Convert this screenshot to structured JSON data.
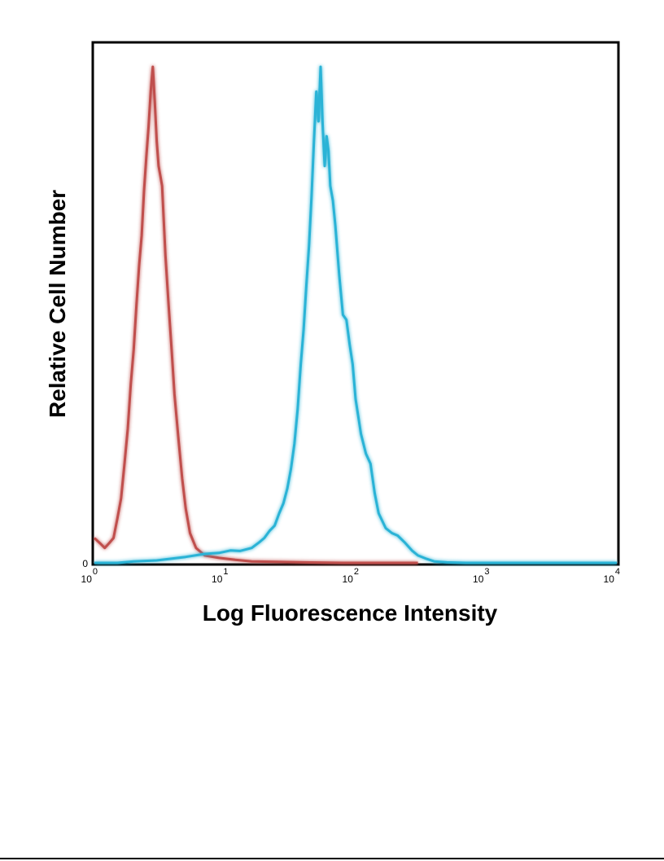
{
  "chart_data": {
    "type": "line",
    "title": "",
    "xlabel": "Log Fluorescence Intensity",
    "ylabel": "Relative Cell Number",
    "xscale": "log",
    "xlim": [
      1,
      10000
    ],
    "ylim": [
      0,
      100
    ],
    "grid": false,
    "legend": "none",
    "x_ticks": [
      {
        "base": "10",
        "exp": "0",
        "value": 1
      },
      {
        "base": "10",
        "exp": "1",
        "value": 10
      },
      {
        "base": "10",
        "exp": "2",
        "value": 100
      },
      {
        "base": "10",
        "exp": "3",
        "value": 1000
      },
      {
        "base": "10",
        "exp": "4",
        "value": 10000
      }
    ],
    "y_ticks": [
      {
        "label": "0",
        "value": 0
      }
    ],
    "series": [
      {
        "color": "#c0504d",
        "points": [
          [
            1.0,
            5
          ],
          [
            1.1,
            4
          ],
          [
            1.2,
            3
          ],
          [
            1.3,
            4
          ],
          [
            1.4,
            5
          ],
          [
            1.5,
            9
          ],
          [
            1.6,
            13
          ],
          [
            1.7,
            20
          ],
          [
            1.8,
            27
          ],
          [
            1.9,
            36
          ],
          [
            2.0,
            43
          ],
          [
            2.1,
            52
          ],
          [
            2.2,
            60
          ],
          [
            2.3,
            66
          ],
          [
            2.4,
            75
          ],
          [
            2.5,
            82
          ],
          [
            2.6,
            88
          ],
          [
            2.7,
            95
          ],
          [
            2.8,
            100
          ],
          [
            2.9,
            93
          ],
          [
            3.0,
            85
          ],
          [
            3.1,
            80
          ],
          [
            3.2,
            78
          ],
          [
            3.3,
            76
          ],
          [
            3.5,
            62
          ],
          [
            3.7,
            52
          ],
          [
            3.9,
            43
          ],
          [
            4.1,
            34
          ],
          [
            4.4,
            25
          ],
          [
            4.7,
            17
          ],
          [
            5.0,
            11
          ],
          [
            5.4,
            6
          ],
          [
            6.0,
            3
          ],
          [
            7.0,
            1.5
          ],
          [
            9.0,
            1
          ],
          [
            12.0,
            0.6
          ],
          [
            16.0,
            0.3
          ],
          [
            25.0,
            0.2
          ],
          [
            40.0,
            0.1
          ],
          [
            80.0,
            0
          ],
          [
            300.0,
            0
          ]
        ]
      },
      {
        "color": "#2bb3d6",
        "points": [
          [
            1.0,
            0
          ],
          [
            1.5,
            0
          ],
          [
            2.0,
            0.3
          ],
          [
            3.0,
            0.5
          ],
          [
            5.0,
            1.2
          ],
          [
            7.0,
            1.8
          ],
          [
            9.0,
            2
          ],
          [
            11.0,
            2.5
          ],
          [
            13.0,
            2.4
          ],
          [
            16.0,
            3
          ],
          [
            18.0,
            4
          ],
          [
            20.0,
            5
          ],
          [
            22.0,
            6.5
          ],
          [
            24.0,
            7.5
          ],
          [
            26.0,
            10
          ],
          [
            28.0,
            12
          ],
          [
            30.0,
            15
          ],
          [
            32.0,
            19
          ],
          [
            34.0,
            24
          ],
          [
            36.0,
            31
          ],
          [
            38.0,
            40
          ],
          [
            40.0,
            47
          ],
          [
            42.0,
            56
          ],
          [
            44.0,
            64
          ],
          [
            46.0,
            74
          ],
          [
            48.0,
            85
          ],
          [
            50.0,
            95
          ],
          [
            52.0,
            89
          ],
          [
            54.0,
            100
          ],
          [
            56.0,
            88
          ],
          [
            58.0,
            80
          ],
          [
            60.0,
            86
          ],
          [
            62.0,
            83
          ],
          [
            64.0,
            76
          ],
          [
            67.0,
            73
          ],
          [
            70.0,
            68
          ],
          [
            75.0,
            58
          ],
          [
            80.0,
            50
          ],
          [
            85.0,
            49
          ],
          [
            90.0,
            44
          ],
          [
            95.0,
            40
          ],
          [
            100.0,
            33
          ],
          [
            110.0,
            26
          ],
          [
            120.0,
            22
          ],
          [
            130.0,
            20
          ],
          [
            140.0,
            14
          ],
          [
            150.0,
            10
          ],
          [
            170.0,
            7
          ],
          [
            190.0,
            6
          ],
          [
            210.0,
            5.5
          ],
          [
            240.0,
            4
          ],
          [
            270.0,
            2.5
          ],
          [
            300.0,
            1.5
          ],
          [
            350.0,
            0.8
          ],
          [
            400.0,
            0.3
          ],
          [
            500.0,
            0.1
          ],
          [
            700.0,
            0
          ],
          [
            10000.0,
            0
          ]
        ]
      }
    ]
  }
}
